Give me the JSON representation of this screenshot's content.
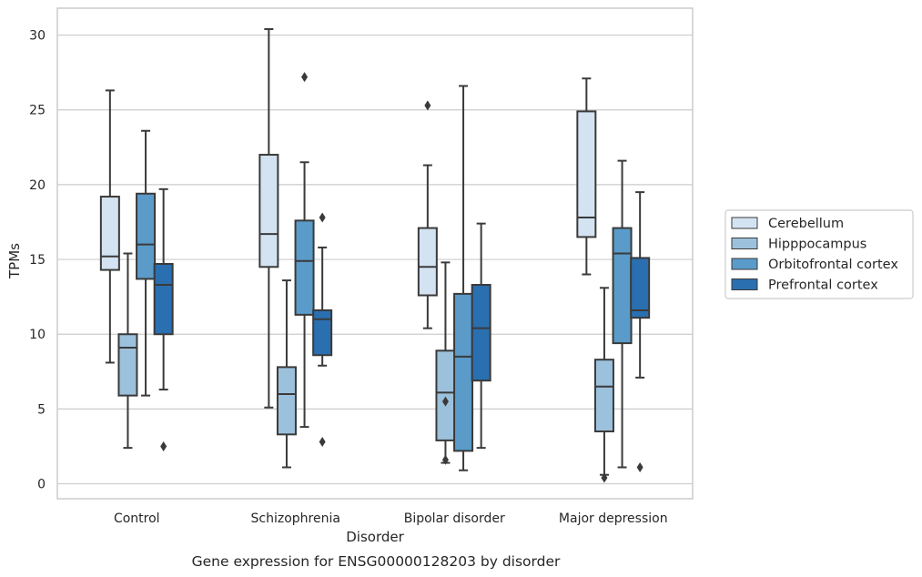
{
  "chart_data": {
    "type": "box",
    "title": "",
    "caption": "Gene expression for ENSG00000128203 by disorder",
    "xlabel": "Disorder",
    "ylabel": "TPMs",
    "ylim": [
      -1,
      31.8
    ],
    "yticks": [
      0,
      5,
      10,
      15,
      20,
      25,
      30
    ],
    "grid": "horizontal",
    "legend": "right",
    "categories": [
      "Control",
      "Schizophrenia",
      "Bipolar disorder",
      "Major depression"
    ],
    "series": [
      {
        "name": "Cerebellum",
        "color": "#d4e3f2",
        "boxes": [
          {
            "whisker_low": 8.1,
            "q1": 14.3,
            "median": 15.2,
            "q3": 19.2,
            "whisker_high": 26.3,
            "outliers": []
          },
          {
            "whisker_low": 5.1,
            "q1": 14.5,
            "median": 16.7,
            "q3": 22.0,
            "whisker_high": 30.4,
            "outliers": []
          },
          {
            "whisker_low": 10.4,
            "q1": 12.6,
            "median": 14.5,
            "q3": 17.1,
            "whisker_high": 21.3,
            "outliers": [
              25.3
            ]
          },
          {
            "whisker_low": 14.0,
            "q1": 16.5,
            "median": 17.8,
            "q3": 24.9,
            "whisker_high": 27.1,
            "outliers": []
          }
        ]
      },
      {
        "name": "Hipppocampus",
        "color": "#9cc1dc",
        "boxes": [
          {
            "whisker_low": 2.4,
            "q1": 5.9,
            "median": 9.1,
            "q3": 10.0,
            "whisker_high": 15.4,
            "outliers": []
          },
          {
            "whisker_low": 1.1,
            "q1": 3.3,
            "median": 6.0,
            "q3": 7.8,
            "whisker_high": 13.6,
            "outliers": []
          },
          {
            "whisker_low": 1.4,
            "q1": 2.9,
            "median": 6.1,
            "q3": 8.9,
            "whisker_high": 14.8,
            "outliers": [
              5.5,
              1.6
            ]
          },
          {
            "whisker_low": 0.6,
            "q1": 3.5,
            "median": 6.5,
            "q3": 8.3,
            "whisker_high": 13.1,
            "outliers": [
              0.4
            ]
          }
        ]
      },
      {
        "name": "Orbitofrontal cortex",
        "color": "#5a9bc9",
        "boxes": [
          {
            "whisker_low": 5.9,
            "q1": 13.7,
            "median": 16.0,
            "q3": 19.4,
            "whisker_high": 23.6,
            "outliers": []
          },
          {
            "whisker_low": 3.8,
            "q1": 11.3,
            "median": 14.9,
            "q3": 17.6,
            "whisker_high": 21.5,
            "outliers": [
              27.2
            ]
          },
          {
            "whisker_low": 0.9,
            "q1": 2.2,
            "median": 8.5,
            "q3": 12.7,
            "whisker_high": 26.6,
            "outliers": []
          },
          {
            "whisker_low": 1.1,
            "q1": 9.4,
            "median": 15.4,
            "q3": 17.1,
            "whisker_high": 21.6,
            "outliers": []
          }
        ]
      },
      {
        "name": "Prefrontal cortex",
        "color": "#2a6fb0",
        "boxes": [
          {
            "whisker_low": 6.3,
            "q1": 10.0,
            "median": 13.3,
            "q3": 14.7,
            "whisker_high": 19.7,
            "outliers": [
              2.5
            ]
          },
          {
            "whisker_low": 7.9,
            "q1": 8.6,
            "median": 11.0,
            "q3": 11.6,
            "whisker_high": 15.8,
            "outliers": [
              17.8,
              2.8
            ]
          },
          {
            "whisker_low": 2.4,
            "q1": 6.9,
            "median": 10.4,
            "q3": 13.3,
            "whisker_high": 17.4,
            "outliers": []
          },
          {
            "whisker_low": 7.1,
            "q1": 11.1,
            "median": 11.6,
            "q3": 15.1,
            "whisker_high": 19.5,
            "outliers": [
              1.1
            ]
          }
        ]
      }
    ]
  }
}
